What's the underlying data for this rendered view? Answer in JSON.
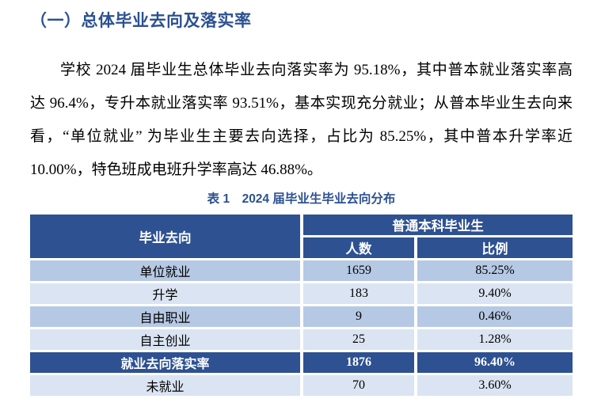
{
  "page": {
    "heading": "（一）总体毕业去向及落实率",
    "paragraph_lines": [
      "学校 2024 届毕业生总体毕业去向落实率为 95.18%，其中普本就业落实率高",
      "达 96.4%，专升本就业落实率 93.51%，基本实现充分就业；从普本毕业生去向来",
      "看，“单位就业” 为毕业生主要去向选择，占比为 85.25%，其中普本升学率近",
      "10.00%，特色班成电班升学率高达 46.88%。"
    ]
  },
  "table": {
    "caption": "表 1　2024 届毕业生毕业去向分布",
    "header": {
      "destination": "毕业去向",
      "group": "普通本科毕业生",
      "sub": [
        "人数",
        "比例"
      ]
    },
    "rows": [
      {
        "label": "单位就业",
        "count": "1659",
        "ratio": "85.25%"
      },
      {
        "label": "升学",
        "count": "183",
        "ratio": "9.40%"
      },
      {
        "label": "自由职业",
        "count": "9",
        "ratio": "0.46%"
      },
      {
        "label": "自主创业",
        "count": "25",
        "ratio": "1.28%"
      },
      {
        "label": "就业去向落实率",
        "count": "1876",
        "ratio": "96.40%"
      },
      {
        "label": "未就业",
        "count": "70",
        "ratio": "3.60%"
      }
    ],
    "colors": {
      "accent_blue": "#2E5191",
      "heading_blue": "#2C5191",
      "row_alt_dark": "#B6C9E4",
      "row_alt_light": "#DBE4F2",
      "header_text": "#FFFFFF",
      "body_text": "#000000"
    }
  }
}
